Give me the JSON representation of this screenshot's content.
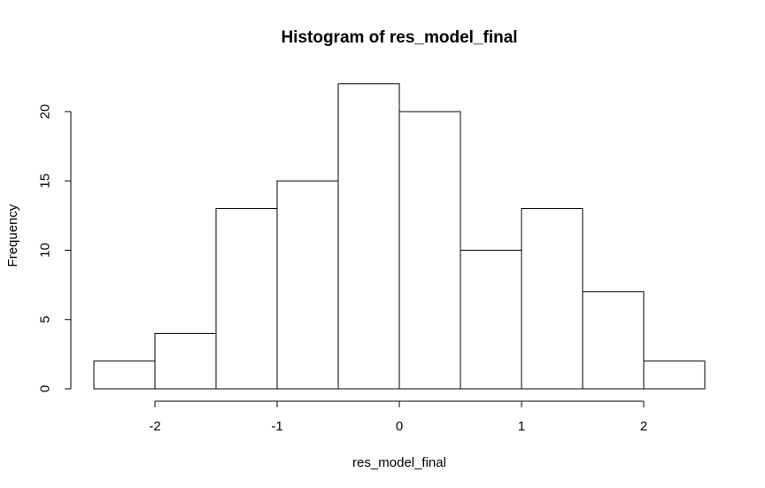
{
  "chart_data": {
    "type": "bar",
    "title": "Histogram of res_model_final",
    "xlabel": "res_model_final",
    "ylabel": "Frequency",
    "bins": [
      {
        "x0": -2.5,
        "x1": -2.0,
        "count": 2
      },
      {
        "x0": -2.0,
        "x1": -1.5,
        "count": 4
      },
      {
        "x0": -1.5,
        "x1": -1.0,
        "count": 13
      },
      {
        "x0": -1.0,
        "x1": -0.5,
        "count": 15
      },
      {
        "x0": -0.5,
        "x1": 0.0,
        "count": 22
      },
      {
        "x0": 0.0,
        "x1": 0.5,
        "count": 20
      },
      {
        "x0": 0.5,
        "x1": 1.0,
        "count": 10
      },
      {
        "x0": 1.0,
        "x1": 1.5,
        "count": 13
      },
      {
        "x0": 1.5,
        "x1": 2.0,
        "count": 7
      },
      {
        "x0": 2.0,
        "x1": 2.5,
        "count": 2
      }
    ],
    "xticks": [
      -2,
      -1,
      0,
      1,
      2
    ],
    "xtick_labels": [
      "-2",
      "-1",
      "0",
      "1",
      "2"
    ],
    "yticks": [
      0,
      5,
      10,
      15,
      20
    ],
    "ytick_labels": [
      "0",
      "5",
      "10",
      "15",
      "20"
    ],
    "xlim": [
      -2.5,
      2.5
    ],
    "ylim": [
      0,
      22
    ],
    "grid": false,
    "colors": {
      "bar_fill": "#ffffff",
      "bar_stroke": "#000000",
      "background": "#ffffff"
    }
  }
}
